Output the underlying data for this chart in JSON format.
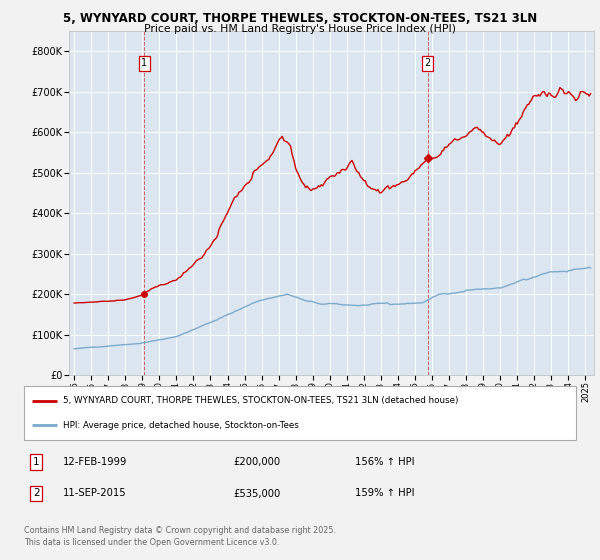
{
  "title_line1": "5, WYNYARD COURT, THORPE THEWLES, STOCKTON-ON-TEES, TS21 3LN",
  "title_line2": "Price paid vs. HM Land Registry's House Price Index (HPI)",
  "bg_color": "#dce6f0",
  "fig_bg_color": "#f2f2f2",
  "sale1_year": 1999.12,
  "sale1_price": 200000,
  "sale2_year": 2015.75,
  "sale2_price": 535000,
  "legend_line1": "5, WYNYARD COURT, THORPE THEWLES, STOCKTON-ON-TEES, TS21 3LN (detached house)",
  "legend_line2": "HPI: Average price, detached house, Stockton-on-Tees",
  "footer_line1": "Contains HM Land Registry data © Crown copyright and database right 2025.",
  "footer_line2": "This data is licensed under the Open Government Licence v3.0.",
  "red_color": "#cc0000",
  "blue_color": "#7aabcf",
  "ylim_min": 0,
  "ylim_max": 850000,
  "xmin": 1994.7,
  "xmax": 2025.5
}
